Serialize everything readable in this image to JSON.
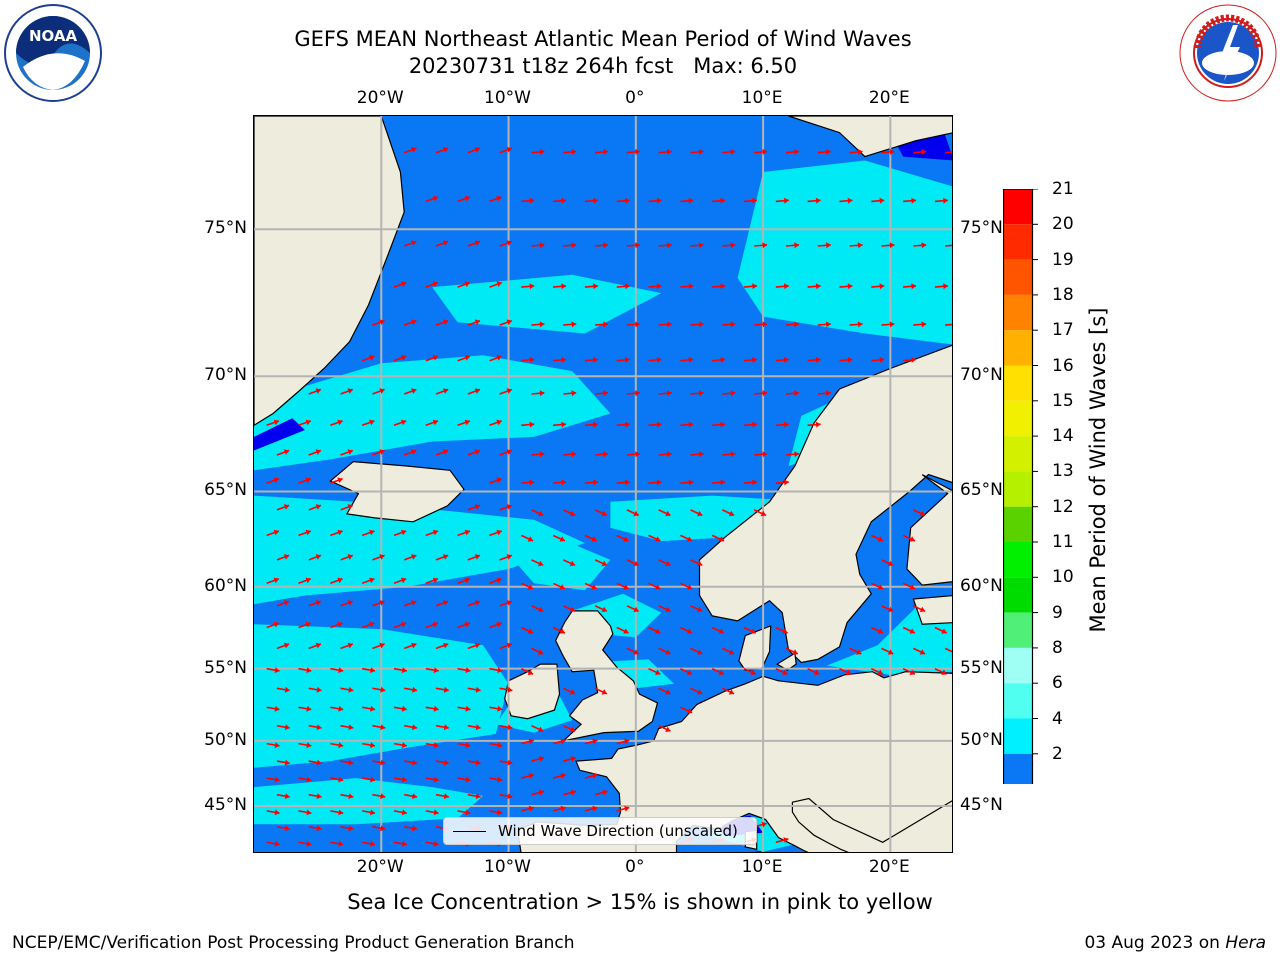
{
  "title": {
    "line1": "GEFS MEAN Northeast Atlantic Mean Period of Wind Waves",
    "line2": "20230731 t18z 264h fcst   Max: 6.50"
  },
  "logos": {
    "left": {
      "icon": "noaa-logo",
      "text": "NOAA"
    },
    "right": {
      "icon": "nws-logo",
      "text": "NATIONAL WEATHER SERVICE"
    }
  },
  "map": {
    "projection": "mercator",
    "lon_range": [
      -30,
      25
    ],
    "lat_range": [
      41,
      78
    ],
    "lon_ticks": [
      {
        "value": -20,
        "label": "20°W"
      },
      {
        "value": -10,
        "label": "10°W"
      },
      {
        "value": 0,
        "label": "0°"
      },
      {
        "value": 10,
        "label": "10°E"
      },
      {
        "value": 20,
        "label": "20°E"
      }
    ],
    "lat_ticks": [
      {
        "value": 75,
        "label": "75°N"
      },
      {
        "value": 70,
        "label": "70°N"
      },
      {
        "value": 65,
        "label": "65°N"
      },
      {
        "value": 60,
        "label": "60°N"
      },
      {
        "value": 55,
        "label": "55°N"
      },
      {
        "value": 50,
        "label": "50°N"
      },
      {
        "value": 45,
        "label": "45°N"
      }
    ],
    "colors": {
      "land": "#eeecdc",
      "ocean_2_4": "#0a78f5",
      "ocean_4_6": "#00eaf5",
      "ocean_below_2": "#0000ee",
      "grid": "#b4b4b4",
      "arrows": "#ff0000",
      "coast": "#000000"
    }
  },
  "legend": {
    "label": "Wind Wave Direction (unscaled)"
  },
  "colorbar": {
    "label": "Mean Period of Wind Waves [s]",
    "ticks": [
      "21",
      "20",
      "19",
      "18",
      "17",
      "16",
      "15",
      "14",
      "13",
      "12",
      "11",
      "10",
      "9",
      "8",
      "6",
      "4",
      "2"
    ],
    "bins_top_to_bottom": [
      "#ff0000",
      "#ff2a00",
      "#ff5500",
      "#ff8200",
      "#ffb000",
      "#ffe000",
      "#f0f000",
      "#d2f000",
      "#b4f000",
      "#5ad200",
      "#00f000",
      "#00dc00",
      "#50f078",
      "#a0fff5",
      "#50fff0",
      "#00f0ff",
      "#0a78f5"
    ],
    "under_color": "#0000ee"
  },
  "footnote": "Sea Ice Concentration > 15% is shown in pink to yellow",
  "credit": "NCEP/EMC/Verification Post Processing Product Generation Branch",
  "date": {
    "text": "03 Aug 2023 on ",
    "host": "Hera"
  }
}
